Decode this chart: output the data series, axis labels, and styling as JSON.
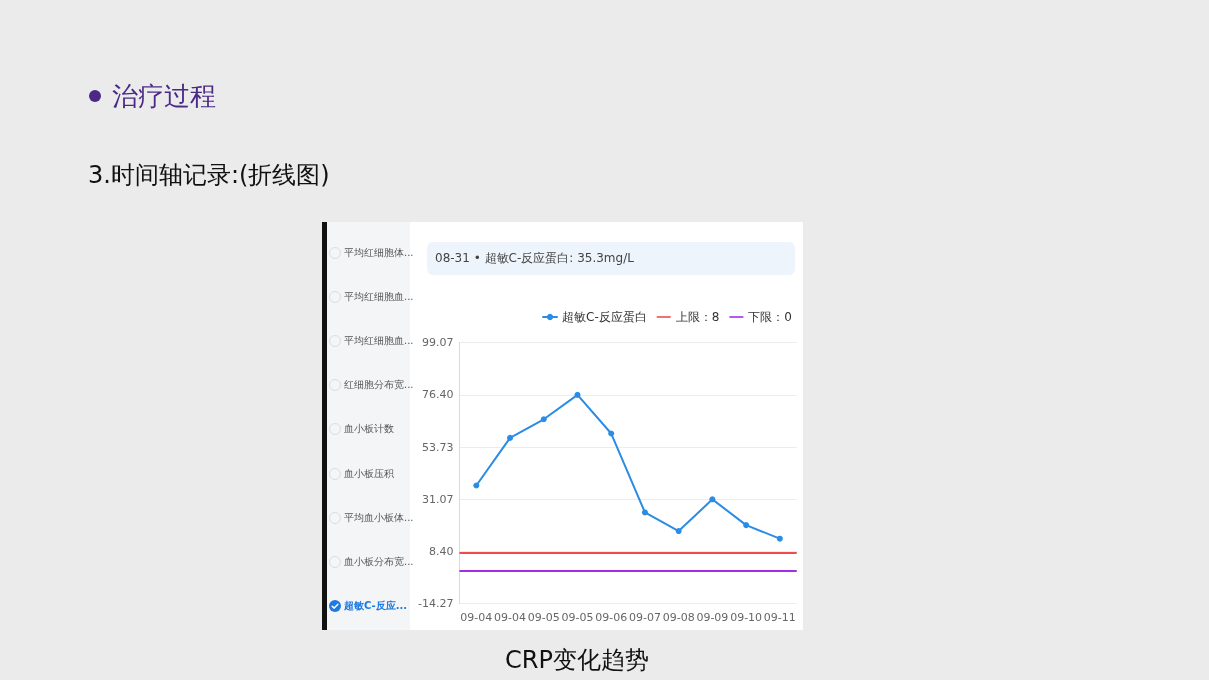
{
  "chart_data": {
    "type": "line",
    "title": "治疗过程",
    "subtitle": "3.时间轴记录:(折线图)",
    "annotations": [
      "08-31 • 超敏C-反应蛋白: 35.3mg/L",
      "平均红细胞体...",
      "平均红细胞血...",
      "平均红细胞血...",
      "红细胞分布宽...",
      "血小板计数",
      "血小板压积",
      "平均血小板体...",
      "血小板分布宽...",
      "超敏C-反应...",
      "CRP变化趋势"
    ],
    "categories": [
      "09-04",
      "09-04",
      "09-05",
      "09-05",
      "09-06",
      "09-07",
      "09-08",
      "09-09",
      "09-10",
      "09-11"
    ],
    "series": [
      {
        "name": "超敏C-反应蛋白",
        "color": "#2b8ce6",
        "values": [
          37.0,
          57.7,
          65.8,
          76.4,
          59.6,
          25.3,
          17.2,
          31.0,
          19.8,
          13.9
        ]
      }
    ],
    "ylim": [
      -14.27,
      99.07
    ],
    "yticks": [
      -14.27,
      {
        "value": 8.4,
        "label": "8.40"
      },
      31.07,
      53.73,
      {
        "value": 76.4,
        "label": "76.40"
      },
      99.07
    ],
    "ref_lines": [
      {
        "axis": "y",
        "value": 8,
        "label": "上限：8",
        "color": "#ee4b4b"
      },
      {
        "axis": "y",
        "value": 0,
        "label": "下限：0",
        "color": "#a22ee6"
      }
    ],
    "grid": "y",
    "legend": "top right",
    "marker": "circle",
    "line_style": "solid"
  }
}
